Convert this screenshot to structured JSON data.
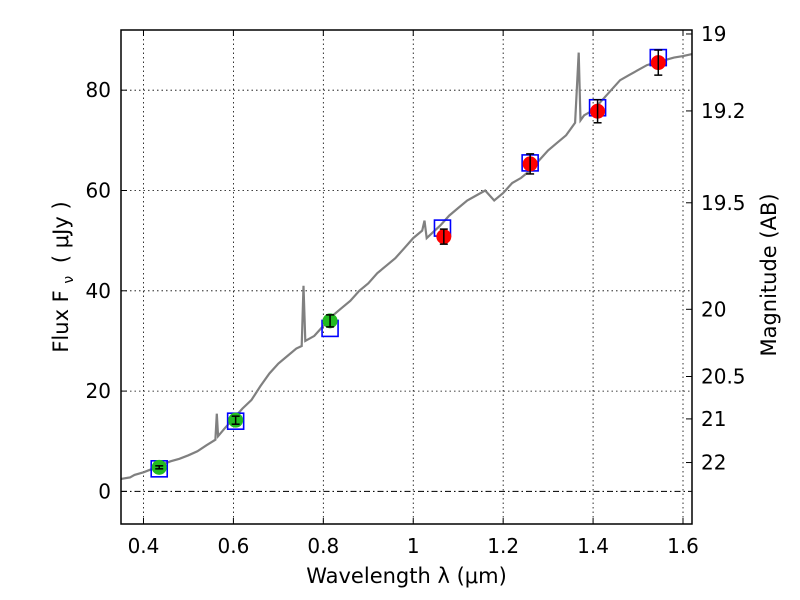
{
  "chart_data": {
    "type": "scatter",
    "xlabel": "Wavelength  λ (μm)",
    "ylabel": "Flux  F",
    "ylabel_sub": "ν",
    "ylabel_units": "(  μJy )",
    "ylabel_right": "Magnitude (AB)",
    "xlim": [
      0.35,
      1.62
    ],
    "ylim": [
      -6.5,
      92
    ],
    "grid": true,
    "x_ticks": [
      0.4,
      0.6,
      0.8,
      1.0,
      1.2,
      1.4,
      1.6
    ],
    "x_tick_labels": [
      "0.4",
      "0.6",
      "0.8",
      "1",
      "1.2",
      "1.4",
      "1.6"
    ],
    "y_ticks": [
      0,
      20,
      40,
      60,
      80
    ],
    "y_tick_labels": [
      "0",
      "20",
      "40",
      "60",
      "80"
    ],
    "right_ticks": [
      {
        "mag": 19,
        "label": "19"
      },
      {
        "mag": 19.2,
        "label": "19.2"
      },
      {
        "mag": 19.5,
        "label": "19.5"
      },
      {
        "mag": 20,
        "label": "20"
      },
      {
        "mag": 20.5,
        "label": "20.5"
      },
      {
        "mag": 21,
        "label": "21"
      },
      {
        "mag": 22,
        "label": "22"
      }
    ],
    "magnitude_zero_point_ujy": 3631000000,
    "colors": {
      "spectrum": "#808080",
      "model": "#0000ff",
      "green": "#22bb22",
      "red": "#ff0000",
      "errorbar": "#000000",
      "zero_line": "#000000"
    },
    "series": [
      {
        "name": "spectrum",
        "x": [
          0.35,
          0.37,
          0.38,
          0.4,
          0.42,
          0.44,
          0.46,
          0.48,
          0.5,
          0.52,
          0.54,
          0.56,
          0.563,
          0.566,
          0.58,
          0.6,
          0.62,
          0.64,
          0.66,
          0.68,
          0.7,
          0.72,
          0.74,
          0.752,
          0.756,
          0.76,
          0.78,
          0.8,
          0.82,
          0.84,
          0.86,
          0.88,
          0.9,
          0.92,
          0.94,
          0.96,
          0.98,
          1.0,
          1.02,
          1.025,
          1.03,
          1.06,
          1.08,
          1.1,
          1.12,
          1.14,
          1.16,
          1.18,
          1.2,
          1.22,
          1.24,
          1.26,
          1.28,
          1.3,
          1.32,
          1.34,
          1.36,
          1.368,
          1.372,
          1.38,
          1.4,
          1.42,
          1.44,
          1.46,
          1.48,
          1.5,
          1.52,
          1.54,
          1.56,
          1.58,
          1.6,
          1.62
        ],
        "y": [
          2.5,
          2.8,
          3.3,
          3.8,
          4.5,
          5.3,
          6.0,
          6.5,
          7.2,
          8.0,
          9.2,
          10.3,
          15.5,
          11.0,
          12.5,
          14.5,
          16.5,
          18.2,
          21.0,
          23.5,
          25.5,
          27.0,
          28.5,
          29.0,
          41.0,
          30.0,
          31.0,
          33.0,
          35.0,
          36.5,
          38.0,
          40.0,
          41.5,
          43.5,
          45.0,
          46.5,
          48.5,
          50.5,
          52.0,
          54.0,
          50.5,
          53.0,
          55.0,
          56.5,
          58.0,
          59.0,
          60.0,
          58.0,
          59.5,
          61.5,
          62.5,
          64.0,
          66.0,
          68.0,
          69.5,
          71.0,
          73.5,
          87.5,
          74.0,
          75.0,
          76.0,
          78.0,
          80.0,
          82.0,
          83.0,
          84.0,
          85.0,
          85.5,
          86.0,
          86.5,
          86.8,
          87.2
        ]
      },
      {
        "name": "model",
        "x": [
          0.435,
          0.605,
          0.815,
          1.065,
          1.26,
          1.41,
          1.545
        ],
        "y": [
          4.5,
          14.0,
          32.5,
          52.5,
          65.5,
          76.5,
          86.5
        ]
      },
      {
        "name": "photometry-green",
        "x": [
          0.435,
          0.605,
          0.815
        ],
        "y": [
          4.8,
          14.2,
          34.0
        ],
        "yerr": [
          0.3,
          0.8,
          1.2
        ]
      },
      {
        "name": "photometry-red",
        "x": [
          1.068,
          1.26,
          1.41,
          1.545
        ],
        "y": [
          50.8,
          65.3,
          75.8,
          85.5
        ],
        "yerr": [
          1.5,
          2.0,
          2.3,
          2.5
        ]
      }
    ]
  }
}
